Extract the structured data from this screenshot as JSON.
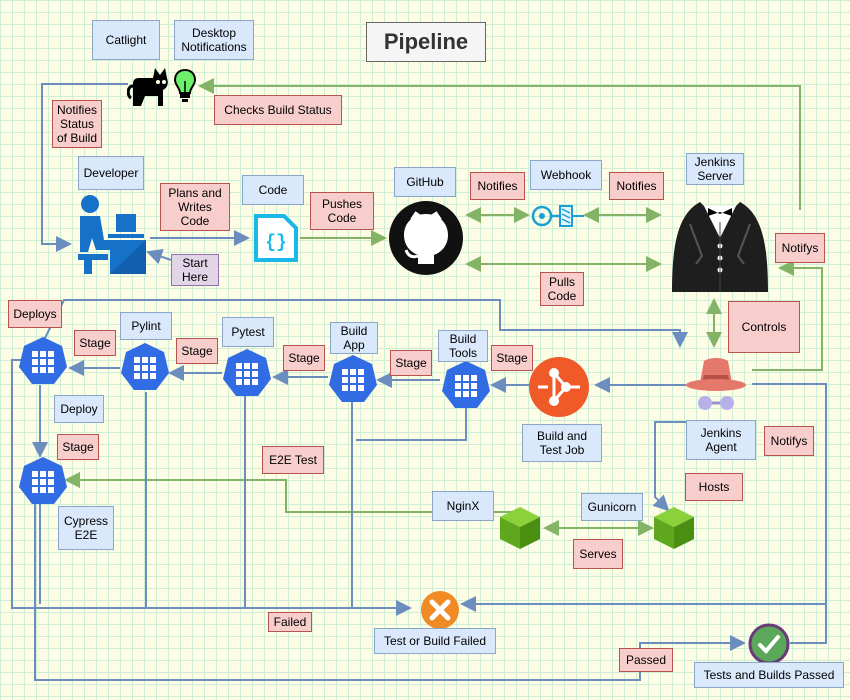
{
  "title": "Pipeline",
  "labels": {
    "catlight": "Catlight",
    "desktop_notifications": "Desktop Notifications",
    "checks_build_status": "Checks Build Status",
    "notifies_status": "Notifies Status of Build",
    "developer": "Developer",
    "plans_writes": "Plans and Writes Code",
    "code": "Code",
    "pushes_code": "Pushes Code",
    "github": "GitHub",
    "notifies_1": "Notifies",
    "webhook": "Webhook",
    "notifies_2": "Notifies",
    "jenkins_server": "Jenkins Server",
    "start_here": "Start Here",
    "pulls_code": "Pulls Code",
    "notifys_1": "Notifys",
    "controls": "Controls",
    "deploys": "Deploys",
    "pylint": "Pylint",
    "pytest": "Pytest",
    "build_app": "Build App",
    "build_tools": "Build Tools",
    "stage_1": "Stage",
    "stage_2": "Stage",
    "stage_3": "Stage",
    "stage_4": "Stage",
    "stage_5": "Stage",
    "stage_6": "Stage",
    "deploy": "Deploy",
    "build_test_job": "Build and Test Job",
    "jenkins_agent": "Jenkins Agent",
    "notifys_2": "Notifys",
    "e2e_test": "E2E Test",
    "hosts": "Hosts",
    "cypress_e2e": "Cypress E2E",
    "nginx": "NginX",
    "gunicorn": "Gunicorn",
    "serves": "Serves",
    "failed": "Failed",
    "test_build_failed": "Test or Build Failed",
    "passed": "Passed",
    "tests_builds_passed": "Tests and Builds Passed"
  },
  "colors": {
    "blue_edge": "#6c8ebf",
    "green_edge": "#82b366",
    "k8s_blue": "#326ce5",
    "cube_green": "#6abf2a",
    "fail_orange": "#f08a24",
    "pass_green": "#5ba85a",
    "hub_orange": "#f05a28"
  },
  "icons": [
    "cat-icon",
    "lightbulb-icon",
    "developer-icon",
    "code-file-icon",
    "github-icon",
    "webhook-icon",
    "jenkins-server-icon",
    "jenkins-agent-icon",
    "hub-icon",
    "k8s-node-icon",
    "cube-icon",
    "fail-icon",
    "pass-icon"
  ]
}
